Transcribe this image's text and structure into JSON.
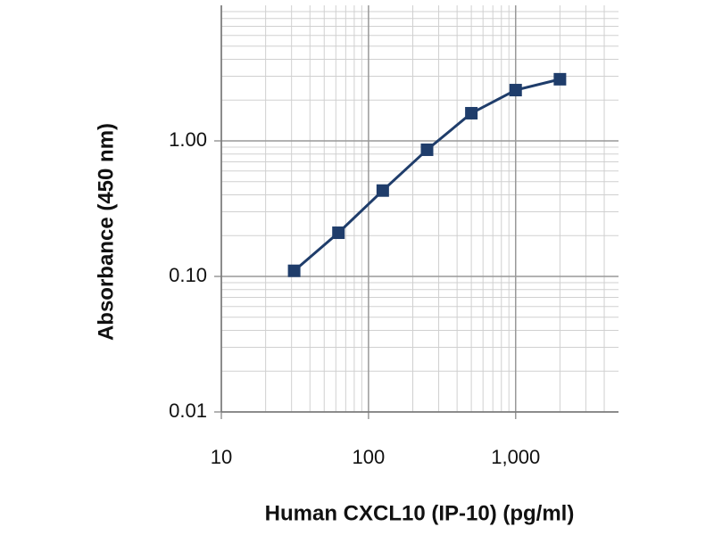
{
  "chart_data": {
    "type": "line",
    "x_label": "Human CXCL10 (IP-10) (pg/ml)",
    "y_label": "Absorbance (450 nm)",
    "x": [
      31.25,
      62.5,
      125,
      250,
      500,
      1000,
      2000
    ],
    "series": [
      {
        "color": "#1f3d6b",
        "values": [
          0.11,
          0.21,
          0.43,
          0.86,
          1.6,
          2.37,
          2.85
        ]
      }
    ],
    "xlim": [
      10,
      5000
    ],
    "ylim": [
      0.01,
      10
    ],
    "xticks": [
      10,
      100,
      {
        "value": 1000,
        "label": "1,000"
      }
    ],
    "yticks": [
      {
        "value": 0.01,
        "label": "0.01"
      },
      {
        "value": 0.1,
        "label": "0.10"
      },
      {
        "value": 1,
        "label": "1.00"
      }
    ],
    "x_log": true,
    "y_log": true,
    "grid": true
  }
}
